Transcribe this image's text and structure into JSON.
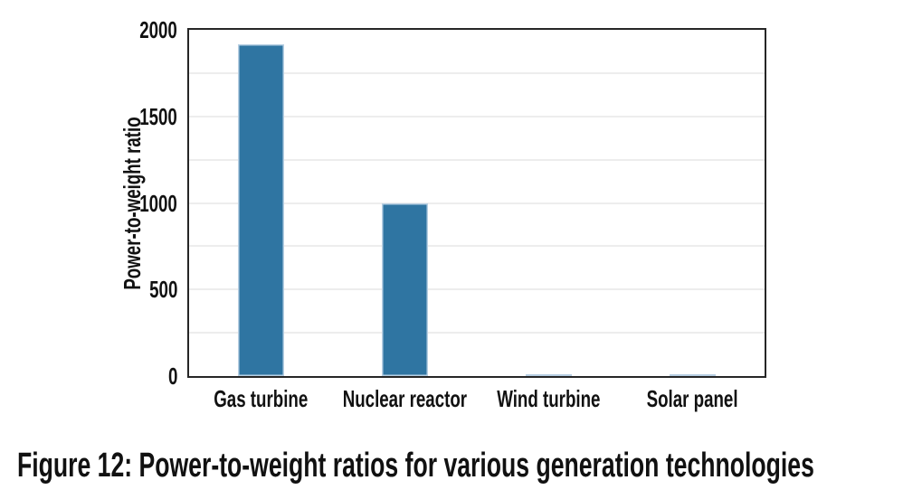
{
  "figure": {
    "caption": "Figure 12: Power-to-weight ratios for various generation technologies"
  },
  "chart_data": {
    "type": "bar",
    "title": "",
    "categories": [
      "Gas turbine",
      "Nuclear reactor",
      "Wind turbine",
      "Solar panel"
    ],
    "values": [
      1915,
      1000,
      10,
      10
    ],
    "xlabel": "",
    "ylabel": "Power-to-weight ratio",
    "ylim": [
      0,
      2000
    ],
    "yticks": [
      0,
      500,
      1000,
      1500,
      2000
    ],
    "gridline_interval": 250,
    "grid": "horizontal",
    "legend_position": "none",
    "bar_color": "#2f75a2",
    "bar_edge_color": "#b7cfe3",
    "gridline_color": "#ededed",
    "axis_color": "#262626",
    "text_color": "#111111"
  }
}
